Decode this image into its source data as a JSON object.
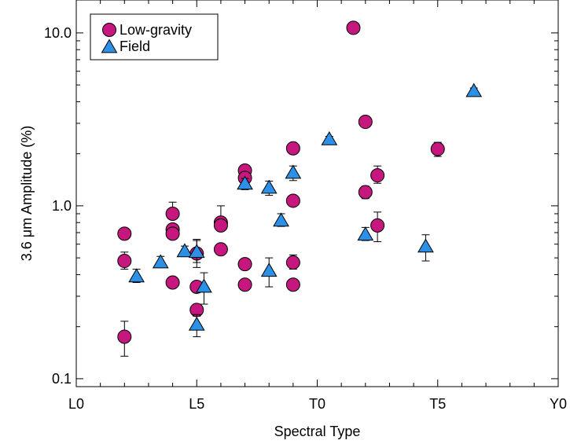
{
  "chart_data": {
    "type": "scatter",
    "xlabel": "Spectral Type",
    "ylabel": "3.6 μm Amplitude (%)",
    "x_scale": "spectral-type",
    "y_scale": "log",
    "xlim": [
      "L0",
      "Y0"
    ],
    "ylim": [
      0.09,
      15.5
    ],
    "x_ticks": [
      "L0",
      "L5",
      "T0",
      "T5",
      "Y0"
    ],
    "y_ticks": [
      "0.1",
      "1.0",
      "10.0"
    ],
    "legend_position": "top-left",
    "grid": false,
    "series": [
      {
        "name": "Low-gravity",
        "marker": "circle",
        "color": "#c6177f",
        "points": [
          {
            "x": "L2",
            "y": 0.69,
            "err_low": 0.04,
            "err_high": 0.04
          },
          {
            "x": "L2",
            "y": 0.48,
            "err_low": 0.05,
            "err_high": 0.06
          },
          {
            "x": "L2",
            "y": 0.175,
            "err_low": 0.04,
            "err_high": 0.04
          },
          {
            "x": "L4",
            "y": 0.9,
            "err_low": 0.0,
            "err_high": 0.15
          },
          {
            "x": "L4",
            "y": 0.73,
            "err_low": 0.05,
            "err_high": 0.05
          },
          {
            "x": "L4",
            "y": 0.69,
            "err_low": 0.04,
            "err_high": 0.04
          },
          {
            "x": "L4",
            "y": 0.36,
            "err_low": 0.02,
            "err_high": 0.02
          },
          {
            "x": "L5",
            "y": 0.53,
            "err_low": 0.06,
            "err_high": 0.1
          },
          {
            "x": "L5",
            "y": 0.34,
            "err_low": 0.02,
            "err_high": 0.02
          },
          {
            "x": "L5",
            "y": 0.25,
            "err_low": 0.02,
            "err_high": 0.02
          },
          {
            "x": "L6",
            "y": 0.8,
            "err_low": 0.08,
            "err_high": 0.2
          },
          {
            "x": "L6",
            "y": 0.77,
            "err_low": 0.05,
            "err_high": 0.05
          },
          {
            "x": "L6",
            "y": 0.56,
            "err_low": 0.03,
            "err_high": 0.03
          },
          {
            "x": "L7",
            "y": 1.6,
            "err_low": 0.05,
            "err_high": 0.05
          },
          {
            "x": "L7",
            "y": 1.45,
            "err_low": 0.05,
            "err_high": 0.05
          },
          {
            "x": "L7",
            "y": 0.46,
            "err_low": 0.02,
            "err_high": 0.02
          },
          {
            "x": "L7",
            "y": 0.35,
            "err_low": 0.02,
            "err_high": 0.02
          },
          {
            "x": "L9",
            "y": 2.15,
            "err_low": 0.05,
            "err_high": 0.05
          },
          {
            "x": "L9",
            "y": 1.07,
            "err_low": 0.04,
            "err_high": 0.04
          },
          {
            "x": "L9",
            "y": 0.47,
            "err_low": 0.04,
            "err_high": 0.05
          },
          {
            "x": "L9",
            "y": 0.35,
            "err_low": 0.02,
            "err_high": 0.02
          },
          {
            "x": "T1.5",
            "y": 10.7,
            "err_low": 0.7,
            "err_high": 0.7
          },
          {
            "x": "T2",
            "y": 3.06,
            "err_low": 0.1,
            "err_high": 0.1
          },
          {
            "x": "T2",
            "y": 1.2,
            "err_low": 0.1,
            "err_high": 0.1
          },
          {
            "x": "T2.5",
            "y": 1.5,
            "err_low": 0.15,
            "err_high": 0.2
          },
          {
            "x": "T2.5",
            "y": 0.77,
            "err_low": 0.15,
            "err_high": 0.15
          },
          {
            "x": "T5",
            "y": 2.13,
            "err_low": 0.2,
            "err_high": 0.2
          }
        ]
      },
      {
        "name": "Field",
        "marker": "triangle",
        "color": "#2b90e6",
        "points": [
          {
            "x": "L2.5",
            "y": 0.39,
            "err_low": 0.03,
            "err_high": 0.04
          },
          {
            "x": "L3.5",
            "y": 0.47,
            "err_low": 0.03,
            "err_high": 0.04
          },
          {
            "x": "L4.5",
            "y": 0.545,
            "err_low": 0.03,
            "err_high": 0.04
          },
          {
            "x": "L5",
            "y": 0.54,
            "err_low": 0.1,
            "err_high": 0.1
          },
          {
            "x": "L5",
            "y": 0.205,
            "err_low": 0.03,
            "err_high": 0.03
          },
          {
            "x": "L5.3",
            "y": 0.34,
            "err_low": 0.07,
            "err_high": 0.07
          },
          {
            "x": "L7",
            "y": 1.34,
            "err_low": 0.1,
            "err_high": 0.1
          },
          {
            "x": "L8",
            "y": 1.27,
            "err_low": 0.12,
            "err_high": 0.12
          },
          {
            "x": "L8",
            "y": 0.42,
            "err_low": 0.08,
            "err_high": 0.08
          },
          {
            "x": "L8.5",
            "y": 0.82,
            "err_low": 0.06,
            "err_high": 0.08
          },
          {
            "x": "L9",
            "y": 1.55,
            "err_low": 0.15,
            "err_high": 0.15
          },
          {
            "x": "T0.5",
            "y": 2.42,
            "err_low": 0.1,
            "err_high": 0.1
          },
          {
            "x": "T2",
            "y": 0.68,
            "err_low": 0.05,
            "err_high": 0.07
          },
          {
            "x": "T4.5",
            "y": 0.58,
            "err_low": 0.1,
            "err_high": 0.1
          },
          {
            "x": "T6.5",
            "y": 4.6,
            "err_low": 0.2,
            "err_high": 0.2
          }
        ]
      }
    ]
  }
}
